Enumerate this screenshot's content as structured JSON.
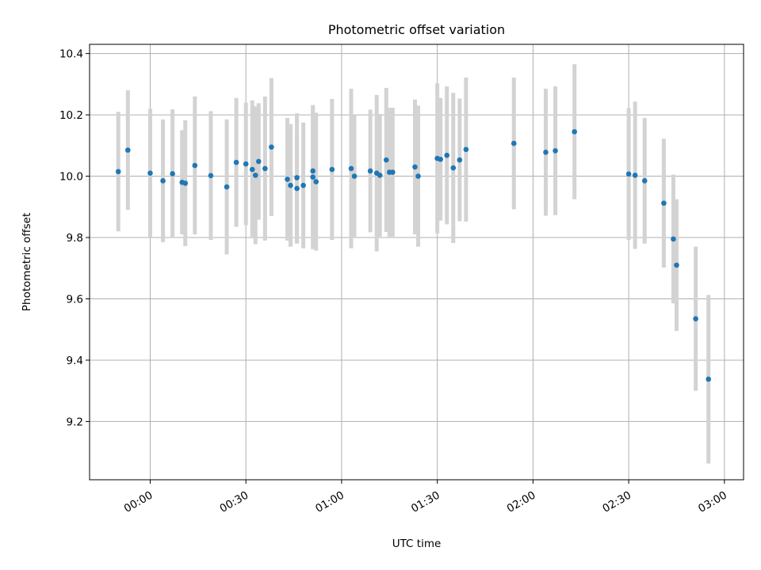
{
  "chart_data": {
    "type": "scatter",
    "title": "Photometric offset variation",
    "xlabel": "UTC time",
    "ylabel": "Photometric offset",
    "grid": true,
    "x_unit": "minutes",
    "xlim": [
      "23:41",
      "03:06"
    ],
    "ylim": [
      9.01,
      10.43
    ],
    "x_ticks": [
      "00:00",
      "00:30",
      "01:00",
      "01:30",
      "02:00",
      "02:30",
      "03:00"
    ],
    "y_ticks": [
      "9.2",
      "9.4",
      "9.6",
      "9.8",
      "10.0",
      "10.2",
      "10.4"
    ],
    "y_tick_values": [
      9.2,
      9.4,
      9.6,
      9.8,
      10.0,
      10.2,
      10.4
    ],
    "colors": {
      "marker": "#1f77b4",
      "errorbar": "#d3d3d3",
      "grid": "#b0b0b0"
    },
    "series": [
      {
        "x": [
          "23:50",
          "23:53",
          "00:00",
          "00:04",
          "00:07",
          "00:10",
          "00:11",
          "00:14",
          "00:19",
          "00:24",
          "00:27",
          "00:30",
          "00:32",
          "00:33",
          "00:34",
          "00:36",
          "00:38",
          "00:43",
          "00:44",
          "00:46",
          "00:46",
          "00:48",
          "00:51",
          "00:51",
          "00:52",
          "00:57",
          "01:03",
          "01:04",
          "01:09",
          "01:11",
          "01:12",
          "01:14",
          "01:15",
          "01:16",
          "01:23",
          "01:24",
          "01:30",
          "01:31",
          "01:33",
          "01:35",
          "01:37",
          "01:39",
          "01:54",
          "02:04",
          "02:07",
          "02:13",
          "02:30",
          "02:32",
          "02:35",
          "02:41",
          "02:44",
          "02:45",
          "02:51",
          "02:55"
        ],
        "y": [
          10.015,
          10.085,
          10.01,
          9.985,
          10.008,
          9.98,
          9.977,
          10.035,
          10.002,
          9.965,
          10.045,
          10.04,
          10.022,
          10.003,
          10.048,
          10.025,
          10.095,
          9.99,
          9.97,
          9.96,
          9.995,
          9.97,
          10.017,
          9.997,
          9.982,
          10.022,
          10.025,
          10.0,
          10.017,
          10.01,
          10.003,
          10.053,
          10.013,
          10.013,
          10.03,
          10.0,
          10.058,
          10.055,
          10.068,
          10.027,
          10.053,
          10.087,
          10.107,
          10.078,
          10.083,
          10.145,
          10.007,
          10.003,
          9.985,
          9.912,
          9.795,
          9.71,
          9.535,
          9.338
        ],
        "yerr": [
          0.195,
          0.195,
          0.21,
          0.2,
          0.21,
          0.17,
          0.205,
          0.225,
          0.21,
          0.22,
          0.21,
          0.2,
          0.225,
          0.225,
          0.19,
          0.235,
          0.225,
          0.2,
          0.2,
          0.18,
          0.21,
          0.205,
          0.21,
          0.235,
          0.225,
          0.23,
          0.26,
          0.2,
          0.2,
          0.255,
          0.2,
          0.235,
          0.21,
          0.21,
          0.22,
          0.23,
          0.245,
          0.2,
          0.225,
          0.245,
          0.2,
          0.235,
          0.215,
          0.207,
          0.21,
          0.22,
          0.215,
          0.24,
          0.205,
          0.21,
          0.21,
          0.215,
          0.235,
          0.275
        ]
      }
    ]
  }
}
